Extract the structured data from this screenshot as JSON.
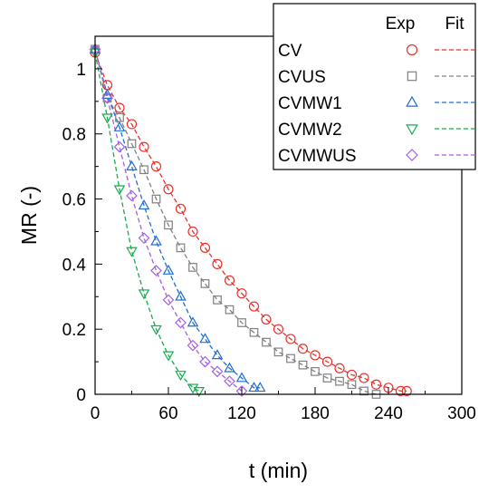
{
  "chart_data": {
    "type": "scatter",
    "xlabel": "t (min)",
    "ylabel": "MR (-)",
    "xlim": [
      0,
      300
    ],
    "ylim": [
      0,
      1.1
    ],
    "xticks": [
      0,
      60,
      120,
      180,
      240,
      300
    ],
    "yticks": [
      0,
      0.2,
      0.4,
      0.6,
      0.8,
      1
    ],
    "ytick_labels": [
      "0",
      "0.2",
      "0.4",
      "0.6",
      "0.8",
      "1"
    ],
    "grid": false,
    "legend": {
      "placement": "top-right",
      "header_exp": "Exp",
      "header_fit": "Fit"
    },
    "series": [
      {
        "name": "CV",
        "color": "#e8322d",
        "marker": "circle",
        "x": [
          0,
          10,
          20,
          30,
          40,
          50,
          60,
          70,
          80,
          90,
          100,
          110,
          120,
          130,
          140,
          150,
          160,
          170,
          180,
          190,
          200,
          210,
          220,
          230,
          240,
          250,
          255
        ],
        "y": [
          1.05,
          0.95,
          0.88,
          0.83,
          0.76,
          0.7,
          0.63,
          0.57,
          0.5,
          0.45,
          0.4,
          0.35,
          0.31,
          0.27,
          0.23,
          0.2,
          0.17,
          0.14,
          0.12,
          0.1,
          0.08,
          0.06,
          0.05,
          0.03,
          0.02,
          0.01,
          0.01
        ]
      },
      {
        "name": "CVUS",
        "color": "#808080",
        "marker": "square",
        "x": [
          0,
          10,
          20,
          30,
          40,
          50,
          60,
          70,
          80,
          90,
          100,
          110,
          120,
          130,
          140,
          150,
          160,
          170,
          180,
          190,
          200,
          210,
          220,
          230
        ],
        "y": [
          1.06,
          0.91,
          0.85,
          0.77,
          0.69,
          0.6,
          0.52,
          0.45,
          0.39,
          0.34,
          0.29,
          0.26,
          0.22,
          0.19,
          0.16,
          0.13,
          0.11,
          0.09,
          0.07,
          0.05,
          0.04,
          0.03,
          0.01,
          0.0
        ]
      },
      {
        "name": "CVMW1",
        "color": "#1f6fd1",
        "marker": "triangle-up",
        "x": [
          0,
          10,
          20,
          30,
          40,
          50,
          60,
          70,
          80,
          90,
          100,
          110,
          120,
          130,
          135
        ],
        "y": [
          1.06,
          0.92,
          0.82,
          0.7,
          0.58,
          0.47,
          0.38,
          0.3,
          0.22,
          0.17,
          0.12,
          0.08,
          0.05,
          0.02,
          0.02
        ]
      },
      {
        "name": "CVMW2",
        "color": "#1aab4f",
        "marker": "triangle-down",
        "x": [
          0,
          10,
          20,
          30,
          40,
          50,
          60,
          70,
          80,
          85
        ],
        "y": [
          1.05,
          0.85,
          0.63,
          0.44,
          0.31,
          0.2,
          0.12,
          0.06,
          0.02,
          0.01
        ]
      },
      {
        "name": "CVMWUS",
        "color": "#a65fe0",
        "marker": "diamond",
        "x": [
          0,
          10,
          20,
          30,
          40,
          50,
          60,
          70,
          80,
          90,
          100,
          110,
          120
        ],
        "y": [
          1.06,
          0.91,
          0.76,
          0.61,
          0.48,
          0.38,
          0.29,
          0.22,
          0.15,
          0.1,
          0.07,
          0.04,
          0.01
        ]
      }
    ]
  }
}
